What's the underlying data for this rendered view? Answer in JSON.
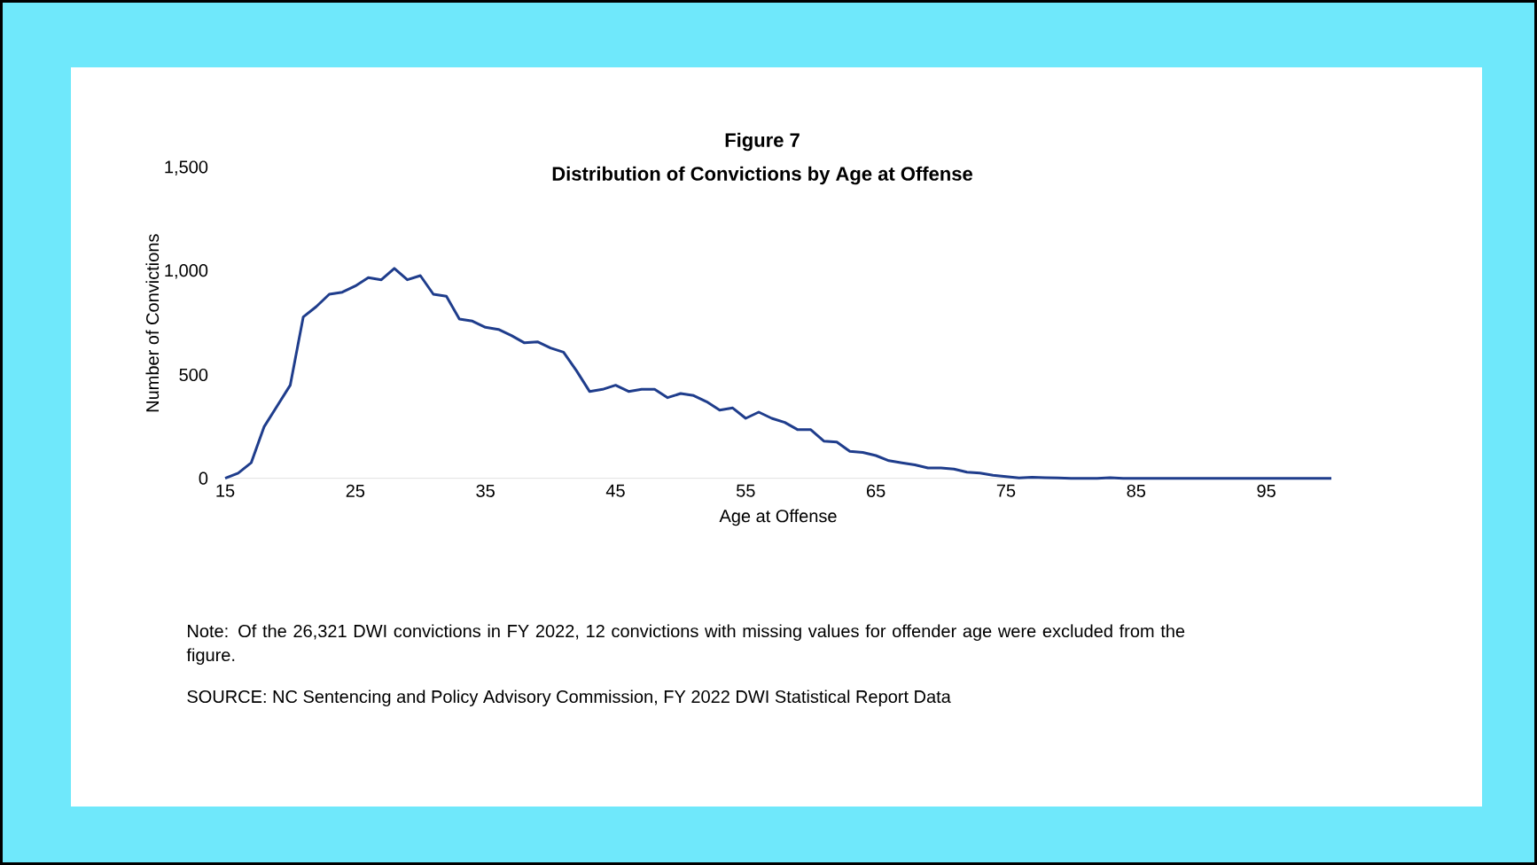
{
  "chart_data": {
    "type": "line",
    "title": "Figure 7",
    "subtitle": "Distribution of Convictions by Age at Offense",
    "xlabel": "Age at Offense",
    "ylabel": "Number of Convictions",
    "x": [
      15,
      16,
      17,
      18,
      19,
      20,
      21,
      22,
      23,
      24,
      25,
      26,
      27,
      28,
      29,
      30,
      31,
      32,
      33,
      34,
      35,
      36,
      37,
      38,
      39,
      40,
      41,
      42,
      43,
      44,
      45,
      46,
      47,
      48,
      49,
      50,
      51,
      52,
      53,
      54,
      55,
      56,
      57,
      58,
      59,
      60,
      61,
      62,
      63,
      64,
      65,
      66,
      67,
      68,
      69,
      70,
      71,
      72,
      73,
      74,
      75,
      76,
      77,
      78,
      79,
      80,
      81,
      82,
      83,
      84,
      85,
      86,
      87,
      88,
      89,
      90,
      91,
      92,
      93,
      94,
      95,
      96,
      97,
      98,
      99,
      100
    ],
    "series": [
      {
        "color": "#1f3d8c",
        "values": [
          0,
          25,
          75,
          250,
          350,
          450,
          780,
          830,
          890,
          900,
          930,
          970,
          960,
          1015,
          960,
          980,
          890,
          880,
          770,
          760,
          730,
          720,
          690,
          655,
          660,
          630,
          610,
          520,
          420,
          430,
          450,
          420,
          430,
          430,
          390,
          410,
          400,
          370,
          330,
          340,
          290,
          320,
          290,
          270,
          235,
          235,
          180,
          175,
          130,
          125,
          110,
          85,
          75,
          65,
          50,
          50,
          45,
          30,
          25,
          15,
          8,
          2,
          5,
          3,
          2,
          0,
          0,
          0,
          3,
          0,
          0,
          0,
          0,
          0,
          0,
          0,
          0,
          0,
          0,
          0,
          0,
          0,
          0,
          0,
          0,
          0
        ]
      }
    ],
    "xlim": [
      15,
      100
    ],
    "ylim": [
      0,
      1500
    ],
    "xticks": [
      15,
      25,
      35,
      45,
      55,
      65,
      75,
      85,
      95
    ],
    "yticks": [
      0,
      500,
      {
        "value": 1000,
        "label": "1,000"
      },
      {
        "value": 1500,
        "label": "1,500"
      }
    ],
    "grid": false,
    "marker": "none",
    "line_style": "solid",
    "annotations": [
      "Note: Of the 26,321 DWI convictions in FY 2022, 12 convictions with missing values for offender age were excluded from the figure.",
      "SOURCE: NC Sentencing and Policy Advisory Commission, FY 2022 DWI Statistical Report Data"
    ]
  }
}
